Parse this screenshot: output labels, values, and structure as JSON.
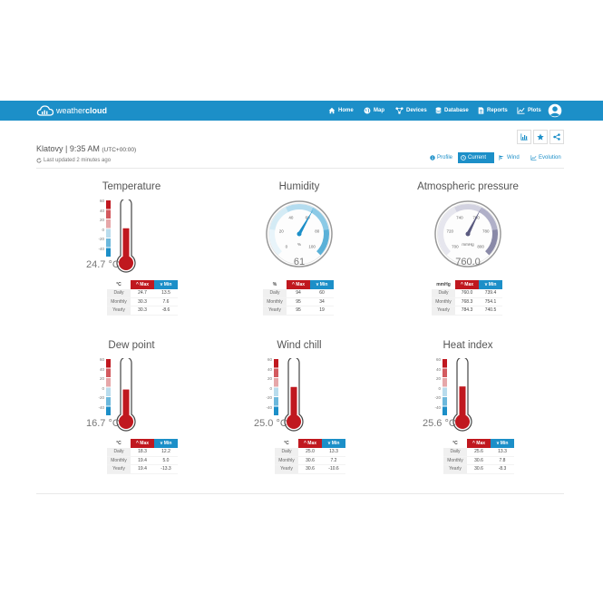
{
  "brand": {
    "name_light": "weather",
    "name_bold": "cloud"
  },
  "nav": {
    "items": [
      {
        "label": "Home",
        "icon": "home-icon"
      },
      {
        "label": "Map",
        "icon": "globe-icon"
      },
      {
        "label": "Devices",
        "icon": "devices-icon"
      },
      {
        "label": "Database",
        "icon": "database-icon"
      },
      {
        "label": "Reports",
        "icon": "report-icon"
      },
      {
        "label": "Plots",
        "icon": "chart-icon"
      }
    ]
  },
  "station": {
    "location": "Klatovy | 9:35 AM",
    "timezone": "(UTC+00:00)",
    "last_updated": "Last updated 2 minutes ago"
  },
  "tabs": [
    {
      "label": "Profile",
      "icon": "info-icon",
      "active": false
    },
    {
      "label": "Current",
      "icon": "clock-icon",
      "active": true
    },
    {
      "label": "Wind",
      "icon": "flag-icon",
      "active": false
    },
    {
      "label": "Evolution",
      "icon": "trend-icon",
      "active": false
    }
  ],
  "table_header": {
    "max": "Max",
    "min": "Min"
  },
  "row_labels": [
    "Daily",
    "Monthly",
    "Yearly"
  ],
  "scale": {
    "temp": [
      "60",
      "40",
      "20",
      "0",
      "-20",
      "-40"
    ]
  },
  "colors": {
    "primary": "#1c8fc8",
    "max": "#c0181f",
    "min": "#1c8fc8"
  },
  "widgets": {
    "temperature": {
      "title": "Temperature",
      "value": "24.7 °C",
      "unit": "°C",
      "fill": 0.54,
      "rows": [
        [
          "24.7",
          "13.5"
        ],
        [
          "30.3",
          "7.6"
        ],
        [
          "30.3",
          "-8.6"
        ]
      ]
    },
    "humidity": {
      "title": "Humidity",
      "value": "61",
      "unit": "%",
      "gauge_labels": [
        "0",
        "20",
        "40",
        "60",
        "80",
        "100"
      ],
      "gauge_unit": "%",
      "gauge_value": 61,
      "rows": [
        [
          "94",
          "60"
        ],
        [
          "95",
          "34"
        ],
        [
          "95",
          "19"
        ]
      ]
    },
    "pressure": {
      "title": "Atmospheric pressure",
      "value": "760.0",
      "unit": "mmHg",
      "gauge_labels": [
        "700",
        "720",
        "740",
        "760",
        "780",
        "800"
      ],
      "gauge_unit": "mmHg",
      "gauge_value": 760,
      "rows": [
        [
          "760.0",
          "739.4"
        ],
        [
          "768.3",
          "754.1"
        ],
        [
          "784.3",
          "740.5"
        ]
      ]
    },
    "dew_point": {
      "title": "Dew point",
      "value": "16.7 °C",
      "unit": "°C",
      "fill": 0.49,
      "rows": [
        [
          "18.3",
          "12.2"
        ],
        [
          "19.4",
          "5.0"
        ],
        [
          "19.4",
          "-13.3"
        ]
      ]
    },
    "wind_chill": {
      "title": "Wind chill",
      "value": "25.0 °C",
      "unit": "°C",
      "fill": 0.54,
      "rows": [
        [
          "25.0",
          "13.3"
        ],
        [
          "30.6",
          "7.2"
        ],
        [
          "30.6",
          "-10.6"
        ]
      ]
    },
    "heat_index": {
      "title": "Heat index",
      "value": "25.6 °C",
      "unit": "°C",
      "fill": 0.55,
      "rows": [
        [
          "25.6",
          "13.3"
        ],
        [
          "30.6",
          "7.8"
        ],
        [
          "30.6",
          "-8.3"
        ]
      ]
    }
  }
}
